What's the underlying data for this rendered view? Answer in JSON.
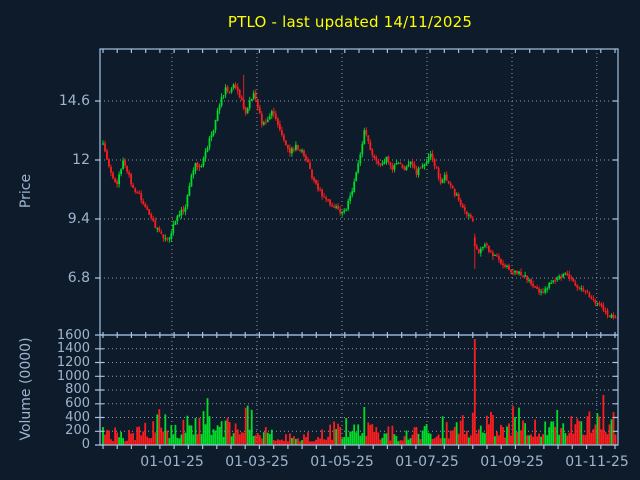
{
  "title": "PTLO - last updated 14/11/2025",
  "colors": {
    "background": "#0e1b2b",
    "frame": "#a4c2e2",
    "grid": "#9aa9b8",
    "tick_label": "#9db5ce",
    "title": "#ffff00",
    "up": "#00dc28",
    "down": "#fb1e1e"
  },
  "chart_data": {
    "type": "candlestick",
    "title": "PTLO - last updated 14/11/2025",
    "legend": "none",
    "grid": "dotted",
    "price_panel": {
      "ylabel": "Price",
      "yticks": [
        "14.6",
        "12",
        "9.4",
        "6.8"
      ],
      "ytick_values": [
        14.6,
        12,
        9.4,
        6.8
      ],
      "ylim": [
        4.29,
        16.89
      ]
    },
    "volume_panel": {
      "ylabel": "Volume (0000)",
      "yticks": [
        "1600",
        "1400",
        "1200",
        "1000",
        "800",
        "600",
        "400",
        "200",
        "0"
      ],
      "ytick_values": [
        1600,
        1400,
        1200,
        1000,
        800,
        600,
        400,
        200,
        0
      ],
      "ylim": [
        0,
        1600
      ]
    },
    "x_axis": {
      "ticks": [
        {
          "label": "01-01-25",
          "day": 34.3
        },
        {
          "label": "01-03-25",
          "day": 76.6
        },
        {
          "label": "01-05-25",
          "day": 118.9
        },
        {
          "label": "01-07-25",
          "day": 161.2
        },
        {
          "label": "01-09-25",
          "day": 203.5
        },
        {
          "label": "01-11-25",
          "day": 245.7
        }
      ],
      "days_total": 256
    },
    "price_trend": [
      [
        0,
        12.65
      ],
      [
        2,
        12.1
      ],
      [
        4,
        11.5
      ],
      [
        5,
        11.1
      ],
      [
        7,
        11.0
      ],
      [
        9,
        11.6
      ],
      [
        10,
        11.9
      ],
      [
        12,
        11.5
      ],
      [
        14,
        11.0
      ],
      [
        16,
        10.6
      ],
      [
        18,
        10.45
      ],
      [
        21,
        10.0
      ],
      [
        24,
        9.4
      ],
      [
        27,
        8.9
      ],
      [
        30,
        8.65
      ],
      [
        33,
        8.5
      ],
      [
        35,
        9.2
      ],
      [
        38,
        9.6
      ],
      [
        41,
        9.9
      ],
      [
        44,
        11.3
      ],
      [
        46,
        11.95
      ],
      [
        48,
        11.6
      ],
      [
        51,
        12.3
      ],
      [
        53,
        12.9
      ],
      [
        55,
        13.35
      ],
      [
        57,
        14.1
      ],
      [
        59,
        14.7
      ],
      [
        61,
        15.15
      ],
      [
        63,
        14.9
      ],
      [
        65,
        15.3
      ],
      [
        67,
        15.1
      ],
      [
        69,
        14.6
      ],
      [
        71,
        14.15
      ],
      [
        73,
        14.55
      ],
      [
        75,
        14.95
      ],
      [
        77,
        14.35
      ],
      [
        79,
        13.6
      ],
      [
        82,
        13.8
      ],
      [
        84,
        14.15
      ],
      [
        86,
        13.85
      ],
      [
        88,
        13.3
      ],
      [
        90,
        12.85
      ],
      [
        93,
        12.4
      ],
      [
        96,
        12.6
      ],
      [
        99,
        12.45
      ],
      [
        102,
        11.85
      ],
      [
        104,
        11.3
      ],
      [
        107,
        10.7
      ],
      [
        110,
        10.35
      ],
      [
        113,
        10.05
      ],
      [
        116,
        9.9
      ],
      [
        119,
        9.7
      ],
      [
        121,
        9.85
      ],
      [
        124,
        10.7
      ],
      [
        127,
        11.9
      ],
      [
        129,
        12.7
      ],
      [
        130,
        13.25
      ],
      [
        132,
        12.8
      ],
      [
        135,
        12.0
      ],
      [
        138,
        11.7
      ],
      [
        141,
        12.1
      ],
      [
        144,
        11.6
      ],
      [
        147,
        11.95
      ],
      [
        150,
        11.5
      ],
      [
        153,
        11.9
      ],
      [
        156,
        11.4
      ],
      [
        158,
        11.75
      ],
      [
        161,
        11.9
      ],
      [
        163,
        12.2
      ],
      [
        166,
        11.6
      ],
      [
        168,
        11.0
      ],
      [
        170,
        11.35
      ],
      [
        173,
        10.8
      ],
      [
        176,
        10.4
      ],
      [
        179,
        9.95
      ],
      [
        182,
        9.55
      ],
      [
        184,
        9.4
      ],
      [
        185,
        8.25
      ],
      [
        187,
        7.95
      ],
      [
        190,
        8.3
      ],
      [
        193,
        7.9
      ],
      [
        196,
        7.65
      ],
      [
        199,
        7.45
      ],
      [
        202,
        7.15
      ],
      [
        204,
        7.0
      ],
      [
        207,
        7.1
      ],
      [
        210,
        6.85
      ],
      [
        213,
        6.55
      ],
      [
        216,
        6.25
      ],
      [
        218,
        6.15
      ],
      [
        221,
        6.45
      ],
      [
        224,
        6.6
      ],
      [
        227,
        6.85
      ],
      [
        230,
        7.0
      ],
      [
        232,
        6.8
      ],
      [
        235,
        6.5
      ],
      [
        238,
        6.35
      ],
      [
        241,
        6.1
      ],
      [
        244,
        5.85
      ],
      [
        246,
        5.65
      ],
      [
        249,
        5.4
      ],
      [
        252,
        5.15
      ],
      [
        255,
        4.95
      ]
    ],
    "volume_trend": [
      [
        0,
        150
      ],
      [
        10,
        130
      ],
      [
        22,
        230
      ],
      [
        30,
        330
      ],
      [
        36,
        170
      ],
      [
        44,
        300
      ],
      [
        52,
        430
      ],
      [
        58,
        220
      ],
      [
        66,
        260
      ],
      [
        73,
        350
      ],
      [
        80,
        180
      ],
      [
        90,
        140
      ],
      [
        100,
        120
      ],
      [
        110,
        150
      ],
      [
        119,
        220
      ],
      [
        127,
        340
      ],
      [
        130,
        300
      ],
      [
        138,
        160
      ],
      [
        148,
        140
      ],
      [
        158,
        180
      ],
      [
        166,
        230
      ],
      [
        176,
        240
      ],
      [
        183,
        280
      ],
      [
        186,
        420
      ],
      [
        192,
        300
      ],
      [
        200,
        260
      ],
      [
        208,
        380
      ],
      [
        214,
        300
      ],
      [
        222,
        280
      ],
      [
        230,
        330
      ],
      [
        236,
        420
      ],
      [
        242,
        330
      ],
      [
        248,
        400
      ],
      [
        255,
        380
      ]
    ],
    "events": {
      "peak_day": 70,
      "peak_high": 15.75,
      "gap_down_day": 185,
      "gap_down_open": 8.6,
      "gap_down_close": 8.2,
      "gap_down_low": 7.2,
      "gap_down_high": 8.75,
      "gap_down_volume": 1540
    },
    "first_price": 12.65,
    "last_close": 4.95
  }
}
